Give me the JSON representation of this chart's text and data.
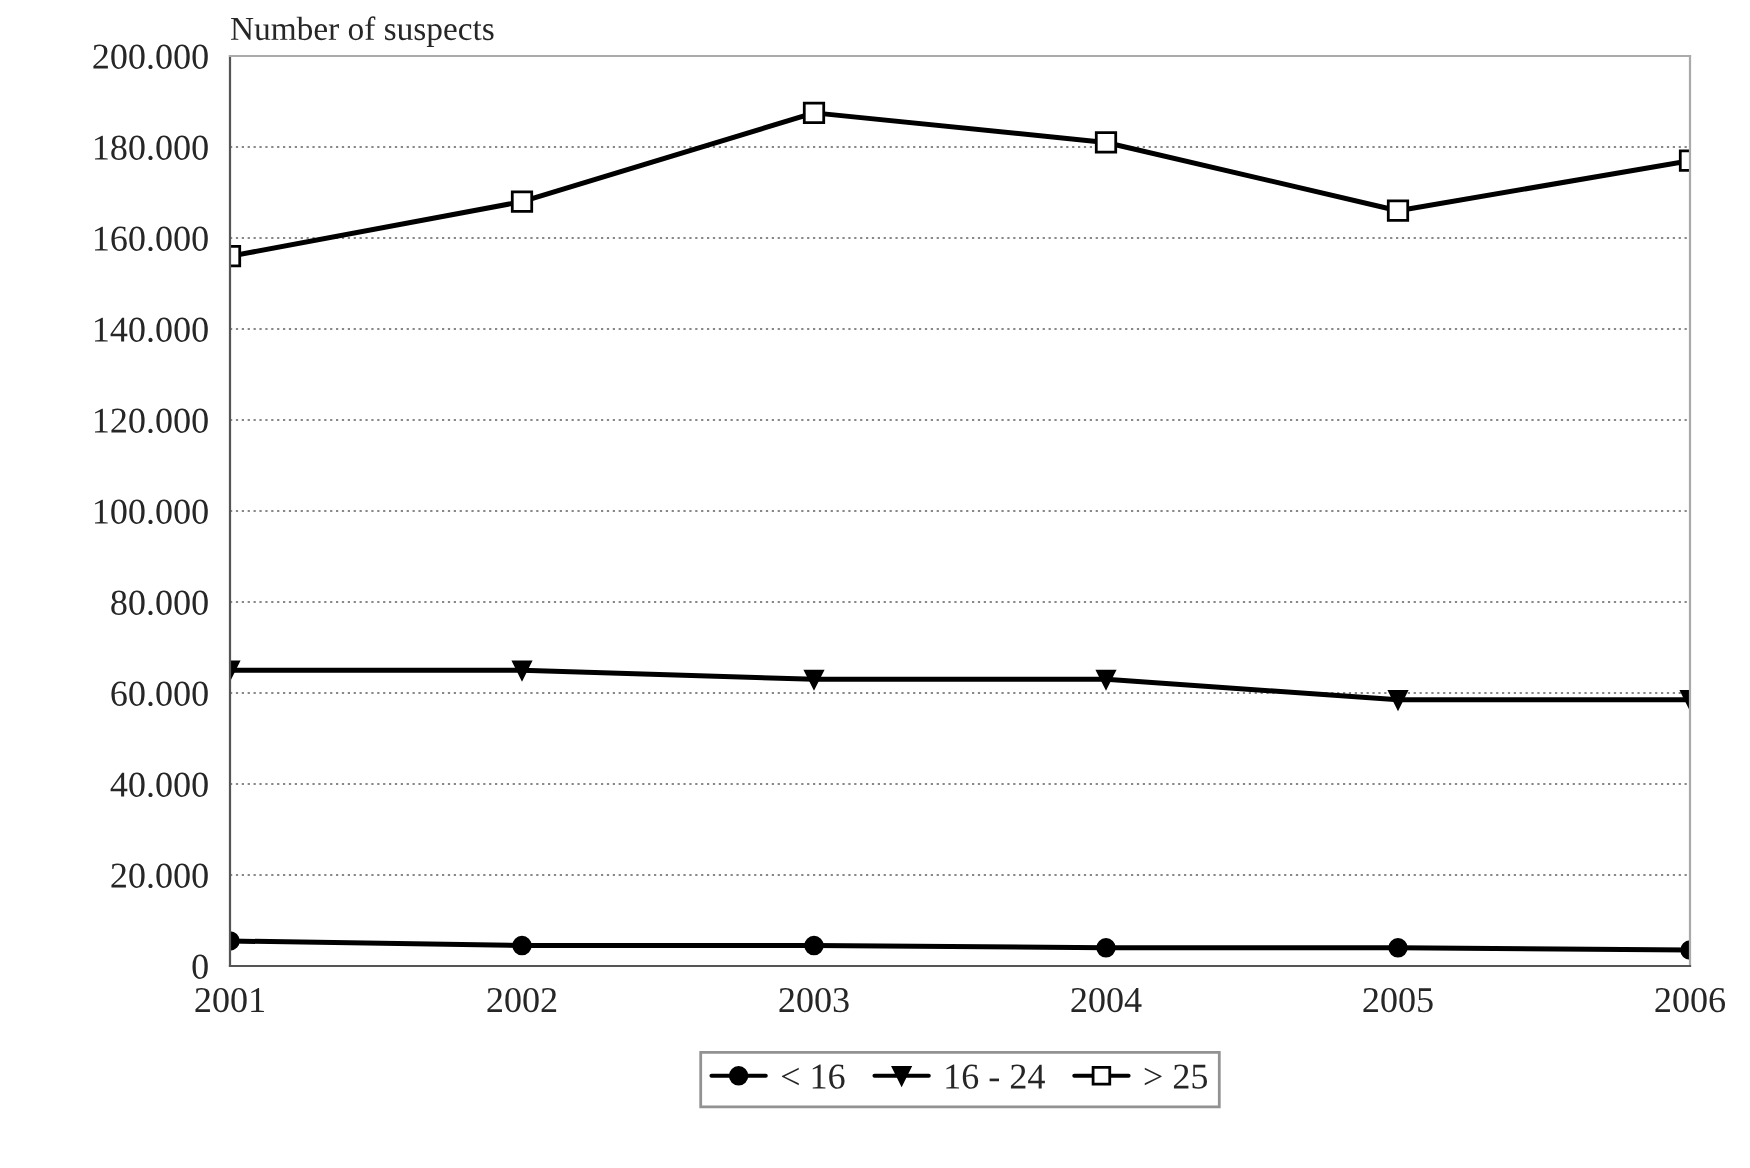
{
  "chart_data": {
    "type": "line",
    "ylabel": "Number of suspects",
    "categories": [
      "2001",
      "2002",
      "2003",
      "2004",
      "2005",
      "2006"
    ],
    "series": [
      {
        "name": "< 16",
        "color": "#000000",
        "marker": "circle",
        "values": [
          5500,
          4500,
          4500,
          4000,
          4000,
          3500
        ]
      },
      {
        "name": "16 - 24",
        "color": "#000000",
        "marker": "triangle",
        "values": [
          65000,
          65000,
          63000,
          63000,
          58500,
          58500
        ]
      },
      {
        "name": "> 25",
        "color": "#000000",
        "marker": "square",
        "values": [
          156000,
          168000,
          187500,
          181000,
          166000,
          177000
        ]
      }
    ],
    "ylim": [
      0,
      200000
    ],
    "yticks": [
      0,
      {
        "value": 20000,
        "label": "20.000"
      },
      {
        "value": 40000,
        "label": "40.000"
      },
      {
        "value": 60000,
        "label": "60.000"
      },
      {
        "value": 80000,
        "label": "80.000"
      },
      {
        "value": 100000,
        "label": "100.000"
      },
      {
        "value": 120000,
        "label": "120.000"
      },
      {
        "value": 140000,
        "label": "140.000"
      },
      {
        "value": 160000,
        "label": "160.000"
      },
      {
        "value": 180000,
        "label": "180.000"
      },
      {
        "value": 200000,
        "label": "200.000"
      }
    ],
    "grid": "y",
    "legend": "bottom",
    "line_style": "solid"
  }
}
